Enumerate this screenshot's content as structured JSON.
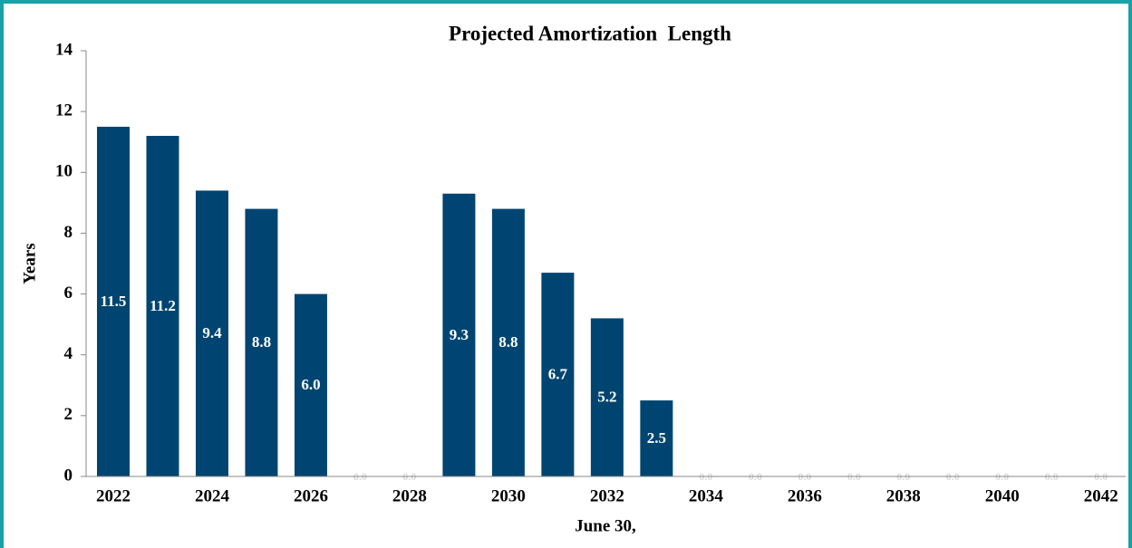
{
  "chart_data": {
    "type": "bar",
    "title": "Projected Amortization  Length",
    "x_label": "June 30,",
    "y_label": "Years",
    "categories": [
      "2022",
      null,
      "2024",
      null,
      "2026",
      null,
      "2028",
      null,
      "2030",
      null,
      "2032",
      null,
      "2034",
      null,
      "2036",
      null,
      "2038",
      null,
      "2040",
      null,
      "2042"
    ],
    "values": [
      11.5,
      11.2,
      9.4,
      8.8,
      6,
      0,
      0,
      9.3,
      8.8,
      6.7,
      5.2,
      2.5,
      0,
      0,
      0,
      0,
      0,
      0,
      0,
      0,
      0
    ],
    "value_labels": [
      "11.5",
      "11.2",
      "9.4",
      "8.8",
      "6.0",
      "0.0",
      "0.0",
      "9.3",
      "8.8",
      "6.7",
      "5.2",
      "2.5",
      "0.0",
      "0.0",
      "0.0",
      "0.0",
      "0.0",
      "0.0",
      "0.0",
      "0.0",
      "0.0"
    ],
    "color": "#004571",
    "ylim": [
      0,
      14
    ],
    "yticks": [
      0,
      2,
      4,
      6,
      8,
      10,
      12,
      14
    ]
  }
}
